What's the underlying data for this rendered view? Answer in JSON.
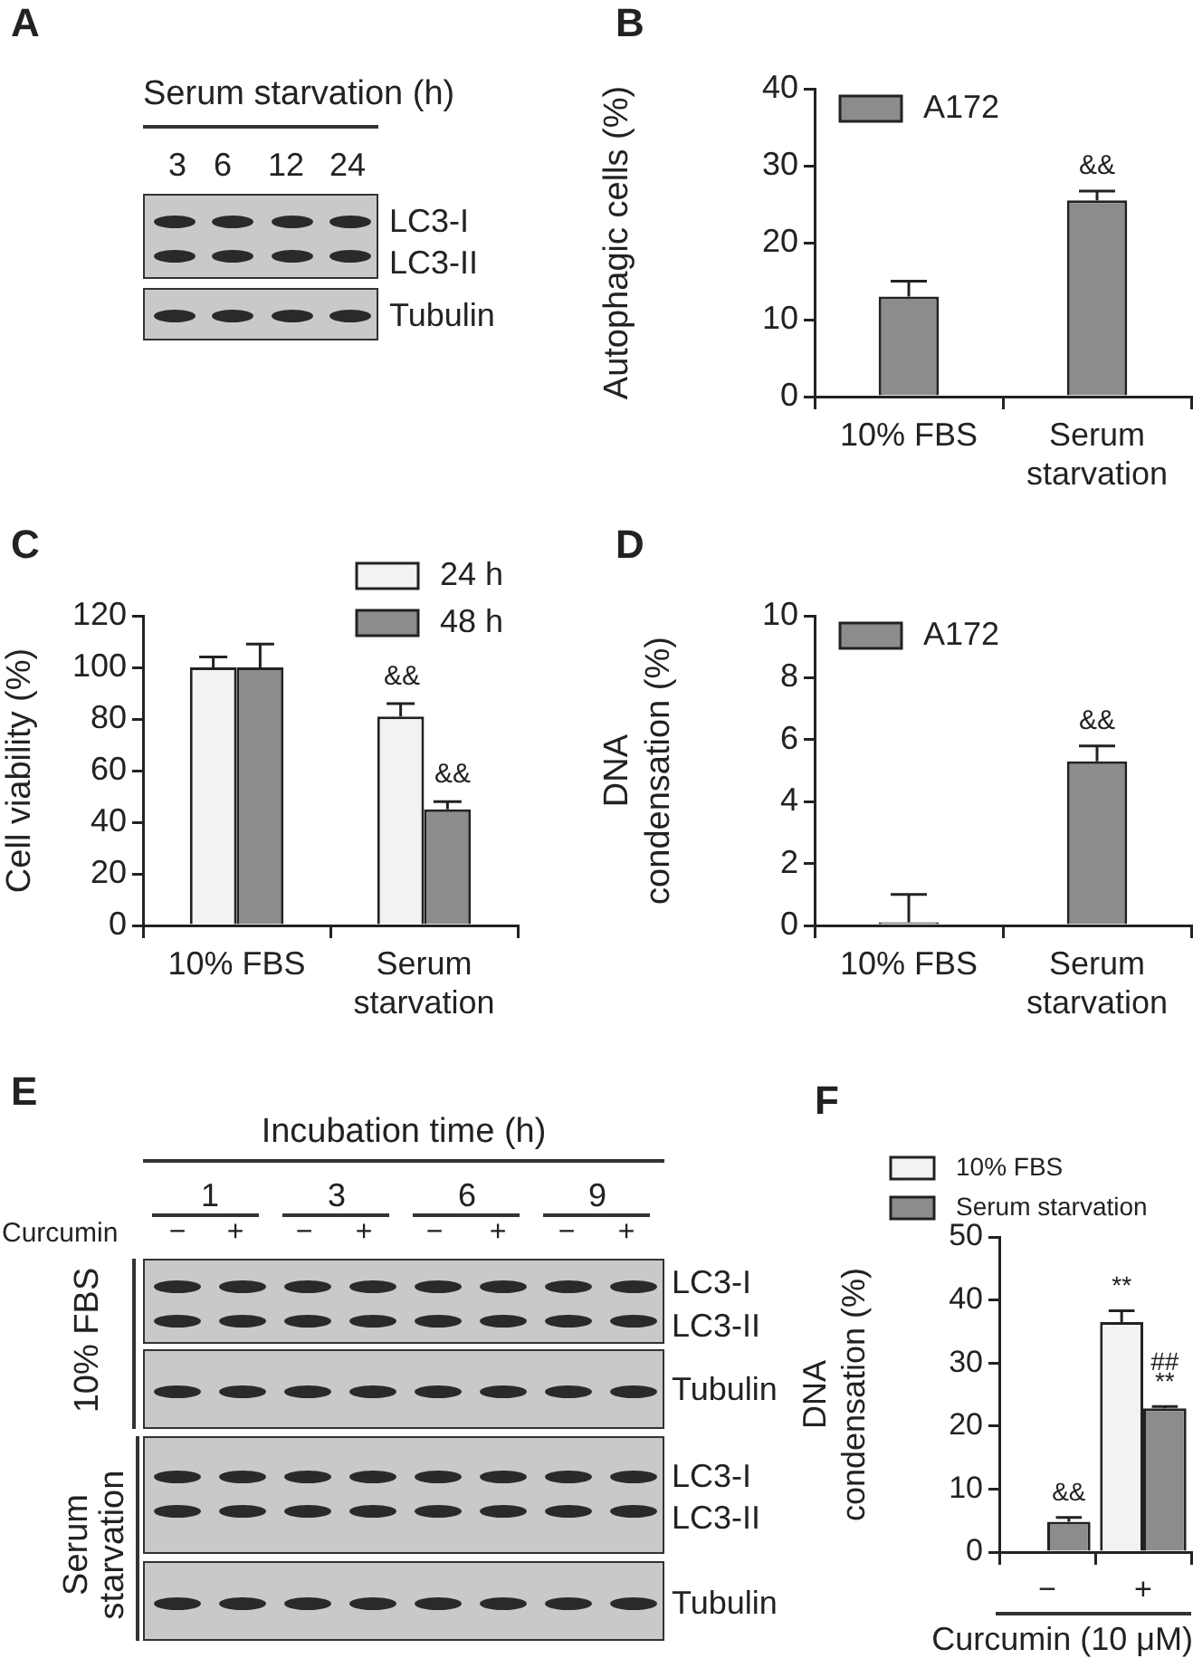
{
  "chart_data": [
    {
      "type": "other",
      "title": "A",
      "annotations": [
        "Serum starvation (h)",
        "3",
        "6",
        "12",
        "24",
        "LC3-I",
        "LC3-II",
        "Tubulin"
      ]
    },
    {
      "type": "bar",
      "title": "B",
      "categories": [
        "10% FBS",
        "Serum starvation"
      ],
      "ylabel": "Autophagic cells (%)",
      "ylim": [
        0,
        40
      ],
      "yticks": [
        0,
        10,
        20,
        30,
        40
      ],
      "legend": "top left",
      "series": [
        {
          "name": "A172",
          "color": "#8c8c8c",
          "values": [
            13,
            25.5
          ],
          "errors": [
            2,
            1.2
          ]
        }
      ],
      "annotations": [
        {
          "text": "&&",
          "x": "Serum starvation",
          "y": 26.7
        }
      ]
    },
    {
      "type": "bar",
      "title": "C",
      "categories": [
        "10% FBS",
        "Serum starvation"
      ],
      "ylabel": "Cell viability (%)",
      "ylim": [
        0,
        120
      ],
      "yticks": [
        0,
        20,
        40,
        60,
        80,
        100,
        120
      ],
      "legend": "top right",
      "series": [
        {
          "name": "24 h",
          "color": "#f2f2f2",
          "values": [
            100,
            81
          ],
          "errors": [
            4,
            5
          ]
        },
        {
          "name": "48 h",
          "color": "#8c8c8c",
          "values": [
            100,
            45
          ],
          "errors": [
            9,
            3
          ]
        }
      ],
      "annotations": [
        "&&",
        "&&"
      ]
    },
    {
      "type": "bar",
      "title": "D",
      "categories": [
        "10% FBS",
        "Serum starvation"
      ],
      "ylabel": "DNA condensation (%)",
      "ylim": [
        0,
        10
      ],
      "yticks": [
        0,
        2,
        4,
        6,
        8,
        10
      ],
      "legend": "top left",
      "series": [
        {
          "name": "A172",
          "color": "#8c8c8c",
          "values": [
            0.1,
            5.3
          ],
          "errors": [
            0.9,
            0.5
          ]
        }
      ],
      "annotations": [
        {
          "text": "&&",
          "x": "Serum starvation",
          "y": 5.8
        }
      ]
    },
    {
      "type": "other",
      "title": "E",
      "annotations": [
        "Incubation time (h)",
        "1",
        "3",
        "6",
        "9",
        "Curcumin",
        "−",
        "+",
        "−",
        "+",
        "−",
        "+",
        "−",
        "+",
        "10% FBS",
        "Serum starvation",
        "LC3-I",
        "LC3-II",
        "Tubulin",
        "LC3-I",
        "LC3-II",
        "Tubulin"
      ]
    },
    {
      "type": "bar",
      "title": "F",
      "categories": [
        "−",
        "+"
      ],
      "xlabel": "Curcumin (10 μM)",
      "ylabel": "DNA condensation (%)",
      "ylim": [
        0,
        50
      ],
      "yticks": [
        0,
        10,
        20,
        30,
        40,
        50
      ],
      "legend": "top",
      "series": [
        {
          "name": "10% FBS",
          "color": "#f2f2f2",
          "values": [
            null,
            36.5
          ],
          "errors": [
            null,
            1.8
          ]
        },
        {
          "name": "Serum starvation",
          "color": "#8c8c8c",
          "values": [
            4.8,
            22.8
          ],
          "errors": [
            0.7,
            0.3
          ]
        }
      ],
      "annotations": [
        {
          "text": "&&",
          "x": "−",
          "y": 5.5
        },
        {
          "text": "**",
          "x": "+",
          "y": 38.3
        },
        {
          "text": "##",
          "x": "+",
          "y": 23.1
        },
        {
          "text": "**",
          "x": "+",
          "y": 23.1
        }
      ]
    }
  ]
}
